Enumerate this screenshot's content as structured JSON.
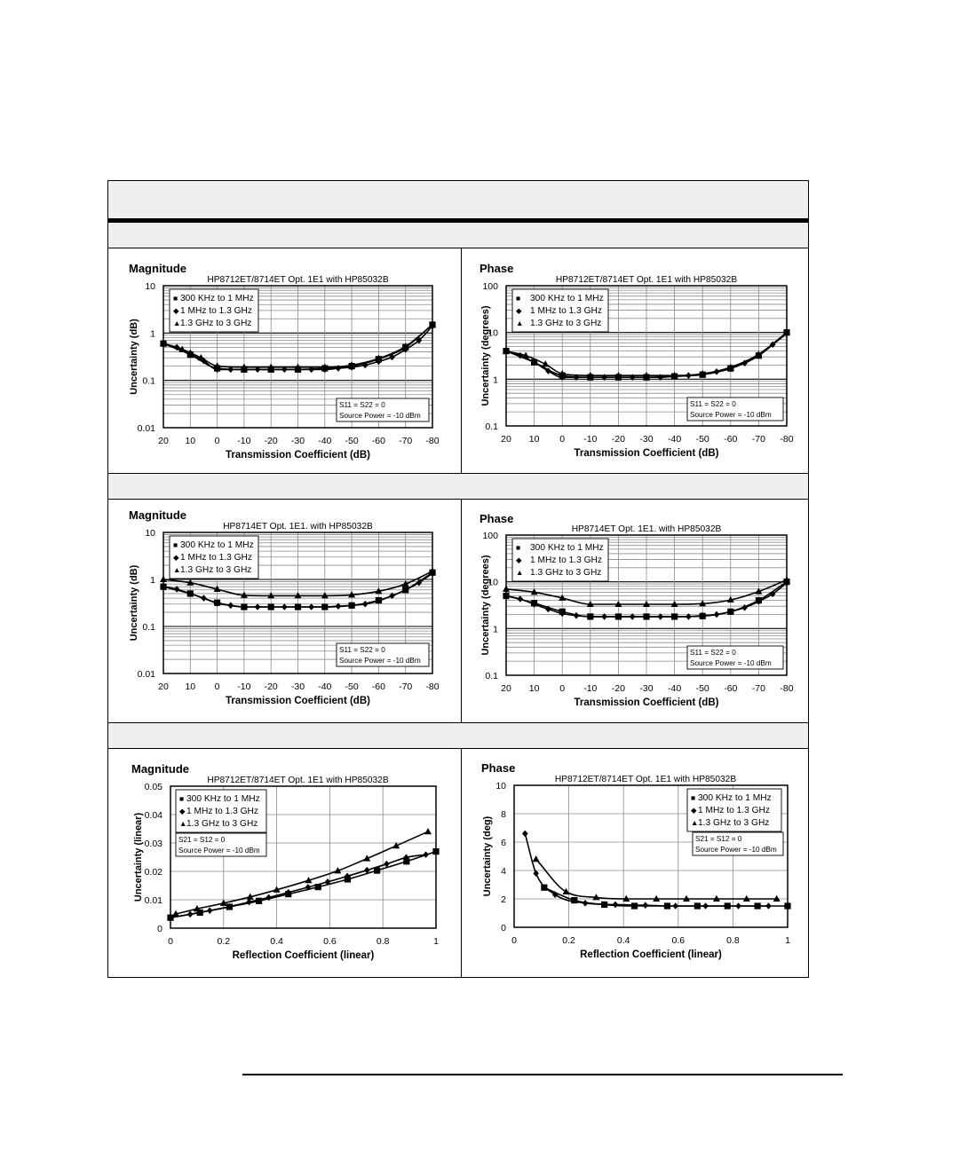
{
  "chart_data": [
    {
      "type": "line",
      "panel_title": "Magnitude",
      "title": "HP8712ET/8714ET Opt. 1E1 with HP85032B",
      "xlabel": "Transmission Coefficient (dB)",
      "ylabel": "Uncertainty (dB)",
      "xticks": [
        20,
        10,
        0,
        -10,
        -20,
        -30,
        -40,
        -50,
        -60,
        -70,
        -80
      ],
      "yticks": [
        "10",
        "1",
        "0.1",
        "0.01"
      ],
      "xlim": [
        20,
        -80
      ],
      "ylim": [
        0.01,
        10
      ],
      "yscale": "log",
      "grid": true,
      "annotation": [
        "S11 = S22 = 0",
        "Source Power = -10 dBm"
      ],
      "series": [
        {
          "name": "300 KHz to 1 MHz",
          "marker": "square",
          "x": [
            20,
            10,
            0,
            -10,
            -20,
            -30,
            -40,
            -50,
            -60,
            -70,
            -80
          ],
          "y": [
            0.6,
            0.35,
            0.18,
            0.17,
            0.17,
            0.17,
            0.18,
            0.2,
            0.28,
            0.5,
            1.5
          ]
        },
        {
          "name": "1 MHz to 1.3 GHz",
          "marker": "diamond",
          "x": [
            20,
            15,
            10,
            5,
            0,
            -5,
            -10,
            -15,
            -20,
            -25,
            -30,
            -35,
            -40,
            -45,
            -50,
            -55,
            -60,
            -65,
            -70,
            -75,
            -80
          ],
          "y": [
            0.6,
            0.5,
            0.38,
            0.26,
            0.17,
            0.17,
            0.17,
            0.17,
            0.17,
            0.17,
            0.17,
            0.17,
            0.17,
            0.18,
            0.19,
            0.21,
            0.25,
            0.31,
            0.45,
            0.7,
            1.4
          ]
        },
        {
          "name": "1.3 GHz to 3 GHz",
          "marker": "triangle",
          "x": [
            20,
            13,
            6,
            0,
            -10,
            -20,
            -30,
            -40,
            -50,
            -60,
            -70,
            -80
          ],
          "y": [
            0.6,
            0.45,
            0.3,
            0.2,
            0.19,
            0.19,
            0.19,
            0.19,
            0.21,
            0.29,
            0.52,
            1.5
          ]
        }
      ]
    },
    {
      "type": "line",
      "panel_title": "Phase",
      "title": "HP8712ET/8714ET Opt. 1E1 with HP85032B",
      "xlabel": "Transmission Coefficient (dB)",
      "ylabel": "Uncertainty (degrees)",
      "xticks": [
        20,
        10,
        0,
        -10,
        -20,
        -30,
        -40,
        -50,
        -60,
        -70,
        -80
      ],
      "yticks": [
        "100",
        "10",
        "1",
        "0.1"
      ],
      "xlim": [
        20,
        -80
      ],
      "ylim": [
        0.1,
        100
      ],
      "yscale": "log",
      "grid": true,
      "annotation": [
        "S11 = S22 = 0",
        "Source Power = -10 dBm"
      ],
      "series": [
        {
          "name": "300 KHz to 1 MHz",
          "marker": "square",
          "x": [
            20,
            10,
            0,
            -10,
            -20,
            -30,
            -40,
            -50,
            -60,
            -70,
            -80
          ],
          "y": [
            4,
            2.3,
            1.2,
            1.1,
            1.1,
            1.1,
            1.15,
            1.25,
            1.7,
            3.2,
            10
          ]
        },
        {
          "name": "1 MHz to 1.3 GHz",
          "marker": "diamond",
          "x": [
            20,
            15,
            10,
            5,
            0,
            -5,
            -10,
            -15,
            -20,
            -25,
            -30,
            -35,
            -40,
            -45,
            -50,
            -55,
            -60,
            -65,
            -70,
            -75,
            -80
          ],
          "y": [
            4,
            3.2,
            2.3,
            1.5,
            1.1,
            1.1,
            1.1,
            1.1,
            1.1,
            1.1,
            1.1,
            1.1,
            1.15,
            1.2,
            1.3,
            1.45,
            1.7,
            2.2,
            3.2,
            5.5,
            9.5
          ]
        },
        {
          "name": "1.3 GHz to 3 GHz",
          "marker": "triangle",
          "x": [
            20,
            13,
            6,
            0,
            -10,
            -20,
            -30,
            -40,
            -50,
            -60,
            -70,
            -80
          ],
          "y": [
            4,
            3.2,
            2.1,
            1.3,
            1.2,
            1.2,
            1.2,
            1.2,
            1.3,
            1.8,
            3.4,
            10
          ]
        }
      ]
    },
    {
      "type": "line",
      "panel_title": "Magnitude",
      "title": "HP8714ET Opt. 1E1. with HP85032B",
      "xlabel": "Transmission Coefficient (dB)",
      "ylabel": "Uncertainty (dB)",
      "xticks": [
        20,
        10,
        0,
        -10,
        -20,
        -30,
        -40,
        -50,
        -60,
        -70,
        -80
      ],
      "yticks": [
        "10",
        "1",
        "0.1",
        "0.01"
      ],
      "xlim": [
        20,
        -80
      ],
      "ylim": [
        0.01,
        10
      ],
      "yscale": "log",
      "grid": true,
      "annotation": [
        "S11 = S22 = 0",
        "Source Power = -10 dBm"
      ],
      "series": [
        {
          "name": "300 KHz to 1 MHz",
          "marker": "square",
          "x": [
            20,
            10,
            0,
            -10,
            -20,
            -30,
            -40,
            -50,
            -60,
            -70,
            -80
          ],
          "y": [
            0.7,
            0.5,
            0.32,
            0.26,
            0.26,
            0.26,
            0.26,
            0.28,
            0.36,
            0.6,
            1.4
          ]
        },
        {
          "name": "1 MHz to 1.3 GHz",
          "marker": "diamond",
          "x": [
            20,
            15,
            10,
            5,
            0,
            -5,
            -10,
            -15,
            -20,
            -25,
            -30,
            -35,
            -40,
            -45,
            -50,
            -55,
            -60,
            -65,
            -70,
            -75,
            -80
          ],
          "y": [
            0.7,
            0.62,
            0.5,
            0.4,
            0.31,
            0.28,
            0.26,
            0.26,
            0.26,
            0.26,
            0.26,
            0.26,
            0.26,
            0.27,
            0.28,
            0.3,
            0.35,
            0.45,
            0.6,
            0.85,
            1.35
          ]
        },
        {
          "name": "1.3 GHz to 3 GHz",
          "marker": "triangle",
          "x": [
            20,
            10,
            0,
            -10,
            -20,
            -30,
            -40,
            -50,
            -60,
            -70,
            -80
          ],
          "y": [
            1.0,
            0.85,
            0.62,
            0.46,
            0.45,
            0.45,
            0.45,
            0.47,
            0.56,
            0.8,
            1.5
          ]
        }
      ]
    },
    {
      "type": "line",
      "panel_title": "Phase",
      "title": "HP8714ET Opt. 1E1. with HP85032B",
      "xlabel": "Transmission Coefficient (dB)",
      "ylabel": "Uncertainty (degrees)",
      "xticks": [
        20,
        10,
        0,
        -10,
        -20,
        -30,
        -40,
        -50,
        -60,
        -70,
        -80
      ],
      "yticks": [
        "100",
        "10",
        "1",
        "0.1"
      ],
      "xlim": [
        20,
        -80
      ],
      "ylim": [
        0.1,
        100
      ],
      "yscale": "log",
      "grid": true,
      "annotation": [
        "S11 = S22 = 0",
        "Source Power = -10 dBm"
      ],
      "series": [
        {
          "name": "300 KHz to 1 MHz",
          "marker": "square",
          "x": [
            20,
            10,
            0,
            -10,
            -20,
            -30,
            -40,
            -50,
            -60,
            -70,
            -80
          ],
          "y": [
            5,
            3.5,
            2.3,
            1.8,
            1.8,
            1.8,
            1.8,
            1.85,
            2.3,
            4,
            10
          ]
        },
        {
          "name": "1 MHz to 1.3 GHz",
          "marker": "diamond",
          "x": [
            20,
            15,
            10,
            5,
            0,
            -5,
            -10,
            -15,
            -20,
            -25,
            -30,
            -35,
            -40,
            -45,
            -50,
            -55,
            -60,
            -65,
            -70,
            -75,
            -80
          ],
          "y": [
            5,
            4.3,
            3.3,
            2.6,
            2.1,
            1.9,
            1.8,
            1.8,
            1.8,
            1.8,
            1.8,
            1.8,
            1.8,
            1.8,
            1.9,
            2.0,
            2.3,
            2.8,
            3.8,
            5.5,
            9.5
          ]
        },
        {
          "name": "1.3 GHz to 3 GHz",
          "marker": "triangle",
          "x": [
            20,
            10,
            0,
            -10,
            -20,
            -30,
            -40,
            -50,
            -60,
            -70,
            -80
          ],
          "y": [
            7,
            6,
            4.5,
            3.3,
            3.3,
            3.3,
            3.3,
            3.4,
            4.1,
            6.2,
            11
          ]
        }
      ]
    },
    {
      "type": "line",
      "panel_title": "Magnitude",
      "title": "HP8712ET/8714ET Opt. 1E1 with HP85032B",
      "xlabel": "Reflection Coefficient (linear)",
      "ylabel": "Uncertainty (linear)",
      "xticks": [
        "0",
        "0.2",
        "0.4",
        "0.6",
        "0.8",
        "1"
      ],
      "yticks": [
        "0.05",
        "0.04",
        "0.03",
        "0.02",
        "0.01",
        "0"
      ],
      "xlim": [
        0,
        1
      ],
      "ylim": [
        0,
        0.05
      ],
      "yscale": "linear",
      "grid": true,
      "annotation": [
        "S21 = S12 = 0",
        "Source Power = -10 dBm"
      ],
      "series": [
        {
          "name": "300 KHz to 1 MHz",
          "marker": "square",
          "x": [
            0,
            0.111,
            0.222,
            0.333,
            0.444,
            0.556,
            0.667,
            0.778,
            0.889,
            1.0
          ],
          "y": [
            0.0037,
            0.0055,
            0.0075,
            0.0096,
            0.012,
            0.0145,
            0.0172,
            0.0203,
            0.0235,
            0.027
          ]
        },
        {
          "name": "1 MHz to 1.3 GHz",
          "marker": "diamond",
          "x": [
            0.0,
            0.074,
            0.148,
            0.222,
            0.296,
            0.37,
            0.444,
            0.518,
            0.592,
            0.666,
            0.74,
            0.814,
            0.888,
            0.962
          ],
          "y": [
            0.0037,
            0.0049,
            0.0062,
            0.0076,
            0.0092,
            0.0108,
            0.0126,
            0.0144,
            0.0163,
            0.0183,
            0.0204,
            0.0226,
            0.0249,
            0.0259
          ]
        },
        {
          "name": "1.3 GHz to 3 GHz",
          "marker": "triangle",
          "x": [
            0.02,
            0.1,
            0.2,
            0.3,
            0.4,
            0.52,
            0.63,
            0.74,
            0.85,
            0.97
          ],
          "y": [
            0.005,
            0.0068,
            0.0088,
            0.011,
            0.0135,
            0.0168,
            0.0202,
            0.0245,
            0.029,
            0.034
          ]
        }
      ]
    },
    {
      "type": "line",
      "panel_title": "Phase",
      "title": "HP8712ET/8714ET Opt. 1E1 with HP85032B",
      "xlabel": "Reflection Coefficient (linear)",
      "ylabel": "Uncertainty (deg)",
      "xticks": [
        "0",
        "0.2",
        "0.4",
        "0.6",
        "0.8",
        "1"
      ],
      "yticks": [
        "10",
        "8",
        "6",
        "4",
        "2",
        "0"
      ],
      "xlim": [
        0,
        1
      ],
      "ylim": [
        0,
        10
      ],
      "yscale": "linear",
      "grid": true,
      "annotation": [
        "S21 = S12 = 0",
        "Source Power = -10 dBm"
      ],
      "series": [
        {
          "name": "300 KHz to 1 MHz",
          "marker": "square",
          "x": [
            0.11,
            0.22,
            0.33,
            0.44,
            0.56,
            0.67,
            0.78,
            0.89,
            1.0
          ],
          "y": [
            2.8,
            1.9,
            1.6,
            1.5,
            1.5,
            1.5,
            1.5,
            1.5,
            1.5
          ]
        },
        {
          "name": "1 MHz to 1.3 GHz",
          "marker": "diamond",
          "x": [
            0.04,
            0.08,
            0.15,
            0.26,
            0.37,
            0.48,
            0.59,
            0.7,
            0.82,
            0.93
          ],
          "y": [
            6.6,
            3.8,
            2.3,
            1.7,
            1.6,
            1.55,
            1.5,
            1.5,
            1.5,
            1.5
          ]
        },
        {
          "name": "1.3 GHz to 3 GHz",
          "marker": "triangle",
          "x": [
            0.08,
            0.19,
            0.3,
            0.41,
            0.52,
            0.63,
            0.74,
            0.85,
            0.96
          ],
          "y": [
            4.8,
            2.5,
            2.1,
            2.0,
            2.0,
            2.0,
            2.0,
            2.0,
            2.0
          ]
        }
      ]
    }
  ]
}
